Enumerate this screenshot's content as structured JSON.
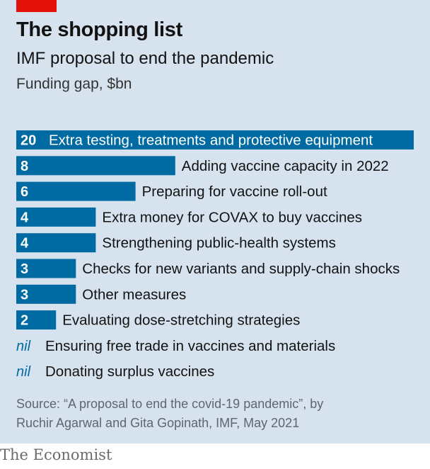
{
  "title": "The shopping list",
  "subtitle": "IMF proposal to end the pandemic",
  "unit": "Funding gap, $bn",
  "source_line1": "Source: “A proposal to end the covid-19 pandemic”, by",
  "source_line2": "Ruchir Agarwal and Gita Gopinath, IMF, May 2021",
  "logo": "The Economist",
  "colors": {
    "bar": "#006ba2",
    "background": "#d6e3ef",
    "accent": "#e3120b"
  },
  "chart_data": {
    "type": "bar",
    "orientation": "horizontal",
    "categories": [
      "Extra testing, treatments and protective equipment",
      "Adding vaccine capacity in 2022",
      "Preparing for vaccine roll-out",
      "Extra money for COVAX to buy vaccines",
      "Strengthening public-health systems",
      "Checks for new variants and supply-chain shocks",
      "Other measures",
      "Evaluating dose-stretching strategies",
      "Ensuring free trade in vaccines and materials",
      "Donating surplus vaccines"
    ],
    "values": [
      20,
      8,
      6,
      4,
      4,
      3,
      3,
      2,
      0,
      0
    ],
    "value_labels": [
      "20",
      "8",
      "6",
      "4",
      "4",
      "3",
      "3",
      "2",
      "nil",
      "nil"
    ],
    "xlim": [
      0,
      20
    ],
    "grid": false,
    "legend": "none"
  }
}
